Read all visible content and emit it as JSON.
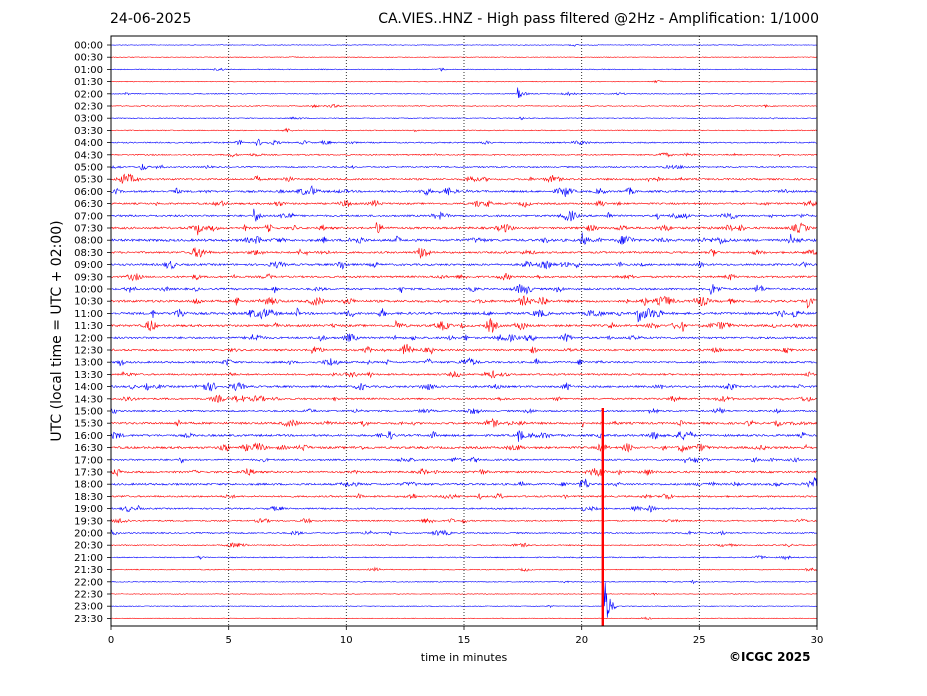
{
  "header": {
    "date": "24-06-2025",
    "title": "CA.VIES..HNZ - High pass filtered @2Hz - Amplification: 1/1000"
  },
  "footer": {
    "copyright": "©ICGC 2025"
  },
  "colors": {
    "odd_trace": "#ff0000",
    "even_trace": "#0000ff",
    "grid": "#000000"
  },
  "chart_data": {
    "type": "line",
    "title": "CA.VIES..HNZ - High pass filtered @2Hz - Amplification: 1/1000",
    "xlabel": "time in minutes",
    "ylabel": "UTC (local time = UTC + 02:00)",
    "xlim": [
      0,
      30
    ],
    "x_ticks": [
      0,
      5,
      10,
      15,
      20,
      25,
      30
    ],
    "grid": "vertical dotted lines at 5-minute intervals",
    "trace_rows": [
      "00:00",
      "00:30",
      "01:00",
      "01:30",
      "02:00",
      "02:30",
      "03:00",
      "03:30",
      "04:00",
      "04:30",
      "05:00",
      "05:30",
      "06:00",
      "06:30",
      "07:00",
      "07:30",
      "08:00",
      "08:30",
      "09:00",
      "09:30",
      "10:00",
      "10:30",
      "11:00",
      "11:30",
      "12:00",
      "12:30",
      "13:00",
      "13:30",
      "14:00",
      "14:30",
      "15:00",
      "15:30",
      "16:00",
      "16:30",
      "17:00",
      "17:30",
      "18:00",
      "18:30",
      "19:00",
      "19:30",
      "20:00",
      "20:30",
      "21:00",
      "21:30",
      "22:00",
      "22:30",
      "23:00",
      "23:30"
    ],
    "trace_colors": "alternating blue and red",
    "activity_level": [
      0.05,
      0.05,
      0.1,
      0.05,
      0.12,
      0.15,
      0.12,
      0.15,
      0.3,
      0.3,
      0.35,
      0.55,
      0.65,
      0.55,
      0.6,
      0.7,
      0.85,
      0.6,
      0.65,
      0.6,
      0.6,
      0.8,
      0.8,
      0.75,
      0.65,
      0.6,
      0.6,
      0.55,
      0.65,
      0.55,
      0.45,
      0.7,
      0.7,
      0.75,
      0.5,
      0.6,
      0.65,
      0.5,
      0.4,
      0.35,
      0.35,
      0.25,
      0.2,
      0.15,
      0.15,
      0.05,
      0.05,
      0.05
    ],
    "events": [
      {
        "row": "02:00",
        "minute": 17.3,
        "amplitude": 1.0
      },
      {
        "row": "04:00",
        "minute": 6.2,
        "amplitude": 0.8
      },
      {
        "row": "06:00",
        "minute": 8.5,
        "amplitude": 1.0
      },
      {
        "row": "07:00",
        "minute": 6.1,
        "amplitude": 1.3
      },
      {
        "row": "07:30",
        "minute": 11.3,
        "amplitude": 1.0
      },
      {
        "row": "08:00",
        "minute": 20.0,
        "amplitude": 1.3
      },
      {
        "row": "10:00",
        "minute": 25.5,
        "amplitude": 1.2
      },
      {
        "row": "10:30",
        "minute": 29.6,
        "amplitude": 1.0
      },
      {
        "row": "11:00",
        "minute": 22.4,
        "amplitude": 1.2
      },
      {
        "row": "11:30",
        "minute": 12.1,
        "amplitude": 1.0
      },
      {
        "row": "16:00",
        "minute": 17.3,
        "amplitude": 1.2
      },
      {
        "row": "18:00",
        "minute": 29.9,
        "amplitude": 1.2
      },
      {
        "row": "23:00",
        "minute": 20.9,
        "amplitude": 8.0
      }
    ]
  }
}
